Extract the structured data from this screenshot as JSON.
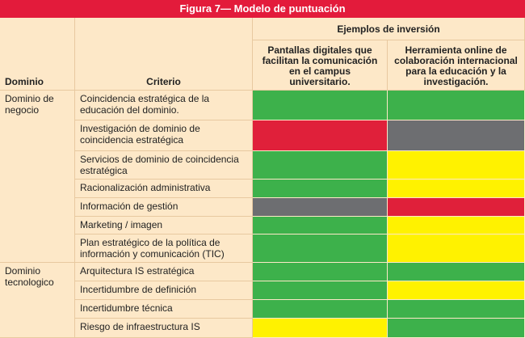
{
  "title": "Figura 7— Modelo de puntuación",
  "table": {
    "headers": {
      "domain": "Dominio",
      "criterion": "Criterio",
      "group": "Ejemplos de inversión",
      "examples": [
        "Pantallas digitales que facilitan la comunicación en el campus universitario.",
        "Herramienta online de colaboración internacional para la educación y la investigación."
      ]
    },
    "domains": [
      {
        "label": "Dominio de negocio",
        "rows": [
          {
            "criterion": "Coincidencia estratégica de la educación del dominio.",
            "colors": [
              "#3db14b",
              "#3db14b"
            ]
          },
          {
            "criterion": "Investigación de dominio de coincidencia estratégica",
            "colors": [
              "#e0203a",
              "#6d6e71"
            ]
          },
          {
            "criterion": "Servicios de dominio de coincidencia estratégica",
            "colors": [
              "#3db14b",
              "#fff200"
            ]
          },
          {
            "criterion": "Racionalización administrativa",
            "colors": [
              "#3db14b",
              "#fff200"
            ]
          },
          {
            "criterion": "Información de gestión",
            "colors": [
              "#6d6e71",
              "#e0203a"
            ]
          },
          {
            "criterion": "Marketing / imagen",
            "colors": [
              "#3db14b",
              "#fff200"
            ]
          },
          {
            "criterion": "Plan estratégico de la política de información y comunicación (TIC)",
            "colors": [
              "#3db14b",
              "#fff200"
            ]
          }
        ]
      },
      {
        "label": "Dominio tecnologico",
        "rows": [
          {
            "criterion": "Arquitectura IS estratégica",
            "colors": [
              "#3db14b",
              "#3db14b"
            ]
          },
          {
            "criterion": "Incertidumbre de definición",
            "colors": [
              "#3db14b",
              "#fff200"
            ]
          },
          {
            "criterion": "Incertidumbre técnica",
            "colors": [
              "#3db14b",
              "#3db14b"
            ]
          },
          {
            "criterion": "Riesgo de infraestructura IS",
            "colors": [
              "#fff200",
              "#3db14b"
            ]
          }
        ]
      }
    ]
  }
}
